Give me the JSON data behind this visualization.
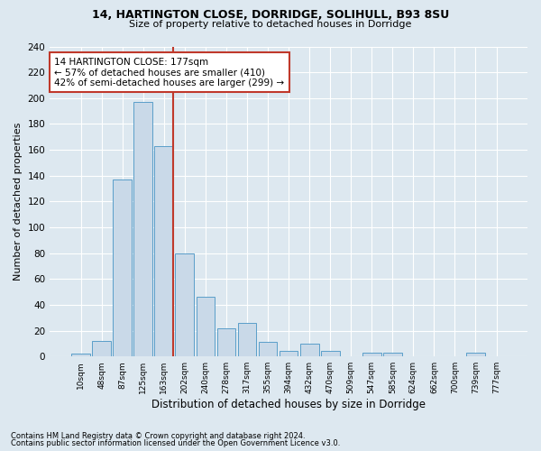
{
  "title1": "14, HARTINGTON CLOSE, DORRIDGE, SOLIHULL, B93 8SU",
  "title2": "Size of property relative to detached houses in Dorridge",
  "xlabel": "Distribution of detached houses by size in Dorridge",
  "ylabel": "Number of detached properties",
  "footnote1": "Contains HM Land Registry data © Crown copyright and database right 2024.",
  "footnote2": "Contains public sector information licensed under the Open Government Licence v3.0.",
  "bin_labels": [
    "10sqm",
    "48sqm",
    "87sqm",
    "125sqm",
    "163sqm",
    "202sqm",
    "240sqm",
    "278sqm",
    "317sqm",
    "355sqm",
    "394sqm",
    "432sqm",
    "470sqm",
    "509sqm",
    "547sqm",
    "585sqm",
    "624sqm",
    "662sqm",
    "700sqm",
    "739sqm",
    "777sqm"
  ],
  "bar_values": [
    2,
    12,
    137,
    197,
    163,
    80,
    46,
    22,
    26,
    11,
    4,
    10,
    4,
    0,
    3,
    3,
    0,
    0,
    0,
    3,
    0
  ],
  "bar_color": "#c9d9e8",
  "bar_edge_color": "#5a9ec9",
  "vline_bin_index": 4,
  "vline_color": "#c0392b",
  "annotation_text": "14 HARTINGTON CLOSE: 177sqm\n← 57% of detached houses are smaller (410)\n42% of semi-detached houses are larger (299) →",
  "annotation_box_color": "white",
  "annotation_box_edge": "#c0392b",
  "ylim": [
    0,
    240
  ],
  "yticks": [
    0,
    20,
    40,
    60,
    80,
    100,
    120,
    140,
    160,
    180,
    200,
    220,
    240
  ],
  "bg_color": "#dde8f0",
  "plot_bg_color": "#dde8f0",
  "grid_color": "white"
}
